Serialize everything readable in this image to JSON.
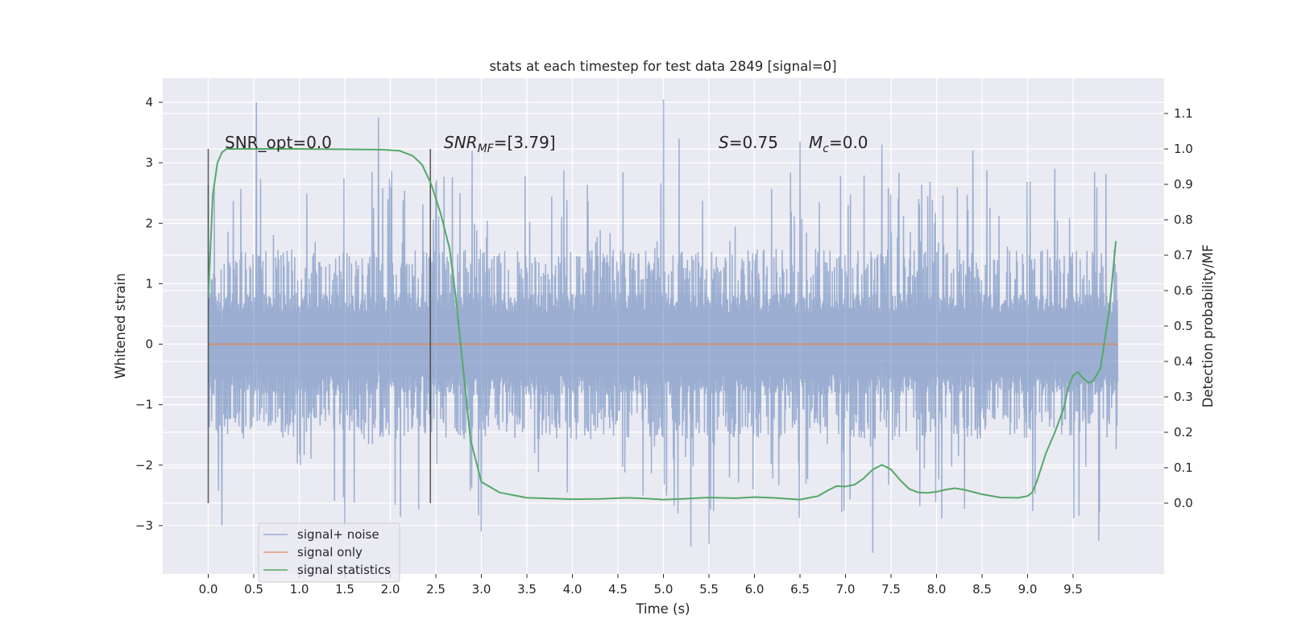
{
  "chart_data": {
    "type": "line",
    "title": "stats at each timestep for test data 2849 [signal=0]",
    "xlabel": "Time (s)",
    "ylabel": "Whitened strain",
    "ylabel_right": "Detection probability/MF",
    "xlim": [
      -0.5,
      10.5
    ],
    "ylim": [
      -3.8,
      4.4
    ],
    "ylim_right": [
      -0.2,
      1.2
    ],
    "x_ticks": [
      "0.0",
      "0.5",
      "1.0",
      "1.5",
      "2.0",
      "2.5",
      "3.0",
      "3.5",
      "4.0",
      "4.5",
      "5.0",
      "5.5",
      "6.0",
      "6.5",
      "7.0",
      "7.5",
      "8.0",
      "8.5",
      "9.0",
      "9.5"
    ],
    "y_ticks": [
      "−3",
      "−2",
      "−1",
      "0",
      "1",
      "2",
      "3",
      "4"
    ],
    "y_ticks_right": [
      "0.0",
      "0.1",
      "0.2",
      "0.3",
      "0.4",
      "0.5",
      "0.6",
      "0.7",
      "0.8",
      "0.9",
      "1.0",
      "1.1"
    ],
    "grid": true,
    "legend_position": "lower-left",
    "annotations": {
      "snr_opt": "SNR_opt=0.0",
      "snr_mf_base": "SNR",
      "snr_mf_sub": "MF",
      "snr_mf_rest": "=[3.79]",
      "s_italic": "S",
      "s_rest": "=0.75",
      "mc_italic": "M",
      "mc_sub": "c",
      "mc_rest": "=0.0"
    },
    "vertical_lines_x": [
      0.0,
      2.44
    ],
    "series": [
      {
        "name": "signal+ noise",
        "color": "#4c72b0",
        "opacity": 0.5,
        "x_range": [
          0.0,
          9.99
        ],
        "envelope": {
          "typical_min": -1.5,
          "typical_max": 1.5,
          "peak_min": -3.4,
          "peak_max": 4.05,
          "dense_min": -0.85,
          "dense_max": 0.85,
          "notable_peaks": [
            {
              "x": 0.53,
              "y": 4.0
            },
            {
              "x": 1.87,
              "y": 3.75
            },
            {
              "x": 5.0,
              "y": 4.05
            },
            {
              "x": 2.9,
              "y": 3.2
            },
            {
              "x": 5.17,
              "y": 3.4
            },
            {
              "x": 6.5,
              "y": 3.35
            },
            {
              "x": 7.4,
              "y": 3.3
            },
            {
              "x": 8.4,
              "y": 3.2
            },
            {
              "x": 9.3,
              "y": 2.9
            },
            {
              "x": 4.5,
              "y": 1.1
            },
            {
              "x": 5.3,
              "y": -3.35
            },
            {
              "x": 5.5,
              "y": -3.3
            },
            {
              "x": 7.3,
              "y": -3.45
            },
            {
              "x": 9.78,
              "y": -3.25
            },
            {
              "x": 0.15,
              "y": -3.0
            },
            {
              "x": 1.5,
              "y": -3.0
            },
            {
              "x": 3.0,
              "y": -3.1
            }
          ]
        }
      },
      {
        "name": "signal only",
        "color": "#dd8452",
        "x": [
          0.0,
          9.99
        ],
        "y": [
          0.0,
          0.0
        ]
      },
      {
        "name": "signal statistics",
        "color": "#55a868",
        "axis": "right",
        "x": [
          0.0,
          0.05,
          0.1,
          0.15,
          0.2,
          0.3,
          0.5,
          1.0,
          1.5,
          1.9,
          2.1,
          2.25,
          2.35,
          2.45,
          2.55,
          2.65,
          2.72,
          2.8,
          2.88,
          3.0,
          3.2,
          3.5,
          4.0,
          4.3,
          4.6,
          4.8,
          5.0,
          5.2,
          5.5,
          5.8,
          6.0,
          6.2,
          6.5,
          6.7,
          6.8,
          6.9,
          7.0,
          7.1,
          7.2,
          7.3,
          7.4,
          7.5,
          7.6,
          7.7,
          7.8,
          7.9,
          8.0,
          8.1,
          8.2,
          8.3,
          8.5,
          8.7,
          8.9,
          9.0,
          9.05,
          9.1,
          9.2,
          9.3,
          9.4,
          9.45,
          9.5,
          9.55,
          9.6,
          9.67,
          9.72,
          9.8,
          9.9,
          9.97
        ],
        "y": [
          0.58,
          0.87,
          0.96,
          0.99,
          1.0,
          1.0,
          1.0,
          1.0,
          0.999,
          0.998,
          0.995,
          0.98,
          0.955,
          0.9,
          0.82,
          0.72,
          0.58,
          0.38,
          0.18,
          0.06,
          0.03,
          0.015,
          0.011,
          0.012,
          0.015,
          0.013,
          0.01,
          0.012,
          0.016,
          0.014,
          0.017,
          0.015,
          0.01,
          0.02,
          0.035,
          0.048,
          0.047,
          0.052,
          0.07,
          0.095,
          0.108,
          0.095,
          0.065,
          0.04,
          0.03,
          0.029,
          0.032,
          0.038,
          0.042,
          0.038,
          0.025,
          0.016,
          0.015,
          0.02,
          0.03,
          0.06,
          0.14,
          0.2,
          0.27,
          0.33,
          0.36,
          0.37,
          0.355,
          0.34,
          0.345,
          0.38,
          0.55,
          0.74
        ]
      }
    ]
  }
}
